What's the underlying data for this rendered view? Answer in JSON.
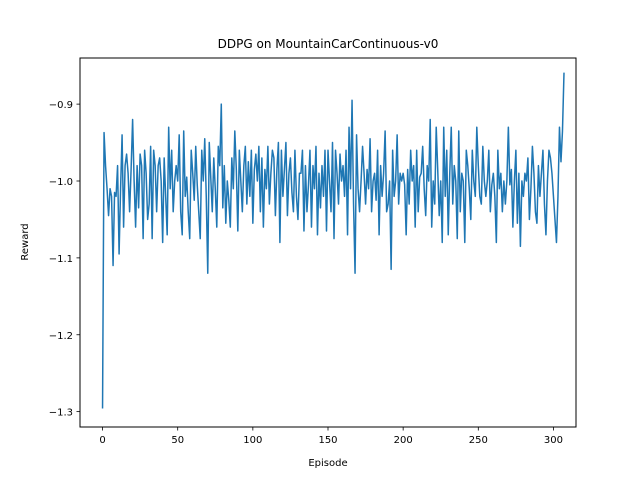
{
  "chart_data": {
    "type": "line",
    "title": "DDPG on MountainCarContinuous-v0",
    "xlabel": "Episode",
    "ylabel": "Reward",
    "xlim": [
      -15,
      315
    ],
    "ylim": [
      -1.32,
      -0.84
    ],
    "xticks": [
      0,
      50,
      100,
      150,
      200,
      250,
      300
    ],
    "yticks": [
      -1.3,
      -1.2,
      -1.1,
      -1.0,
      -0.9
    ],
    "xtick_labels": [
      "0",
      "50",
      "100",
      "150",
      "200",
      "250",
      "300"
    ],
    "ytick_labels": [
      "−1.3",
      "−1.2",
      "−1.1",
      "−1.0",
      "−0.9"
    ],
    "grid": false,
    "series": [
      {
        "name": "reward",
        "color": "#1f77b4",
        "x_start": 0,
        "x_step": 1,
        "values": [
          -1.295,
          -0.937,
          -0.98,
          -1.01,
          -1.045,
          -1.01,
          -1.02,
          -1.11,
          -1.015,
          -1.02,
          -0.98,
          -1.095,
          -1.01,
          -0.94,
          -1.06,
          -0.98,
          -0.965,
          -0.99,
          -1.04,
          -0.985,
          -0.92,
          -1.0,
          -1.06,
          -0.98,
          -1.035,
          -0.965,
          -0.98,
          -1.075,
          -0.96,
          -0.99,
          -1.05,
          -1.03,
          -0.955,
          -1.075,
          -0.96,
          -0.98,
          -1.04,
          -0.98,
          -0.97,
          -1.0,
          -1.08,
          -0.97,
          -1.02,
          -1.07,
          -0.93,
          -1.01,
          -0.96,
          -1.04,
          -1.0,
          -0.98,
          -1.0,
          -0.94,
          -1.04,
          -1.07,
          -0.935,
          -1.02,
          -0.995,
          -1.04,
          -1.075,
          -0.96,
          -0.99,
          -1.025,
          -0.955,
          -1.005,
          -1.04,
          -1.075,
          -0.96,
          -1.0,
          -0.945,
          -1.02,
          -1.12,
          -0.95,
          -0.995,
          -1.04,
          -0.97,
          -1.01,
          -1.06,
          -0.955,
          -0.98,
          -0.9,
          -1.035,
          -0.98,
          -1.055,
          -1.0,
          -1.025,
          -1.06,
          -0.97,
          -1.01,
          -0.935,
          -0.985,
          -1.065,
          -0.96,
          -1.0,
          -1.04,
          -0.98,
          -0.955,
          -1.03,
          -0.975,
          -1.02,
          -0.96,
          -1.055,
          -0.985,
          -0.965,
          -1.0,
          -0.955,
          -1.04,
          -0.97,
          -1.06,
          -0.985,
          -1.01,
          -0.955,
          -1.03,
          -0.99,
          -0.96,
          -0.97,
          -1.045,
          -0.985,
          -0.95,
          -1.08,
          -0.96,
          -1.02,
          -0.985,
          -0.95,
          -1.045,
          -0.99,
          -0.97,
          -1.015,
          -1.04,
          -0.96,
          -1.02,
          -1.05,
          -0.99,
          -0.99,
          -0.96,
          -1.065,
          -0.98,
          -1.04,
          -1.005,
          -0.96,
          -1.06,
          -0.98,
          -1.01,
          -0.955,
          -1.07,
          -0.99,
          -1.035,
          -0.98,
          -1.02,
          -0.96,
          -1.065,
          -0.96,
          -1.0,
          -1.04,
          -0.95,
          -1.075,
          -0.96,
          -0.99,
          -1.03,
          -0.965,
          -1.0,
          -0.98,
          -1.02,
          -0.96,
          -1.07,
          -0.93,
          -1.01,
          -0.895,
          -1.03,
          -1.12,
          -0.94,
          -1.01,
          -1.04,
          -1.0,
          -0.955,
          -0.99,
          -1.03,
          -0.985,
          -1.01,
          -0.945,
          -1.04,
          -1.0,
          -0.99,
          -1.025,
          -0.96,
          -1.07,
          -0.98,
          -1.02,
          -0.99,
          -0.935,
          -1.04,
          -1.03,
          -1.0,
          -1.115,
          -0.96,
          -1.02,
          -1.0,
          -0.94,
          -1.03,
          -0.99,
          -1.0,
          -0.99,
          -1.005,
          -1.07,
          -0.985,
          -1.03,
          -0.96,
          -1.0,
          -0.98,
          -1.06,
          -0.96,
          -1.04,
          -0.995,
          -0.99,
          -0.955,
          -1.01,
          -1.045,
          -0.98,
          -1.0,
          -0.92,
          -1.06,
          -1.0,
          -1.03,
          -0.93,
          -0.985,
          -1.045,
          -1.0,
          -1.08,
          -0.93,
          -1.02,
          -0.96,
          -1.07,
          -0.99,
          -0.93,
          -1.03,
          -0.98,
          -1.0,
          -1.075,
          -0.935,
          -1.04,
          -0.99,
          -1.0,
          -1.08,
          -0.96,
          -0.98,
          -1.01,
          -1.05,
          -0.96,
          -1.0,
          -1.02,
          -0.93,
          -0.98,
          -1.02,
          -1.03,
          -0.955,
          -1.0,
          -1.02,
          -1.0,
          -0.96,
          -1.04,
          -1.005,
          -0.99,
          -1.02,
          -1.08,
          -0.96,
          -1.01,
          -0.99,
          -1.04,
          -1.0,
          -1.03,
          -1.0,
          -0.93,
          -1.005,
          -0.985,
          -1.06,
          -1.0,
          -0.96,
          -1.055,
          -0.99,
          -1.085,
          -1.0,
          -1.02,
          -0.99,
          -1.0,
          -0.97,
          -1.05,
          -1.01,
          -0.955,
          -0.99,
          -1.04,
          -1.055,
          -0.98,
          -1.02,
          -0.99,
          -0.96,
          -1.03,
          -1.07,
          -1.0,
          -0.96,
          -0.97,
          -0.99,
          -1.02,
          -1.05,
          -1.08,
          -1.02,
          -0.93,
          -0.975,
          -0.935,
          -0.86
        ]
      }
    ]
  }
}
